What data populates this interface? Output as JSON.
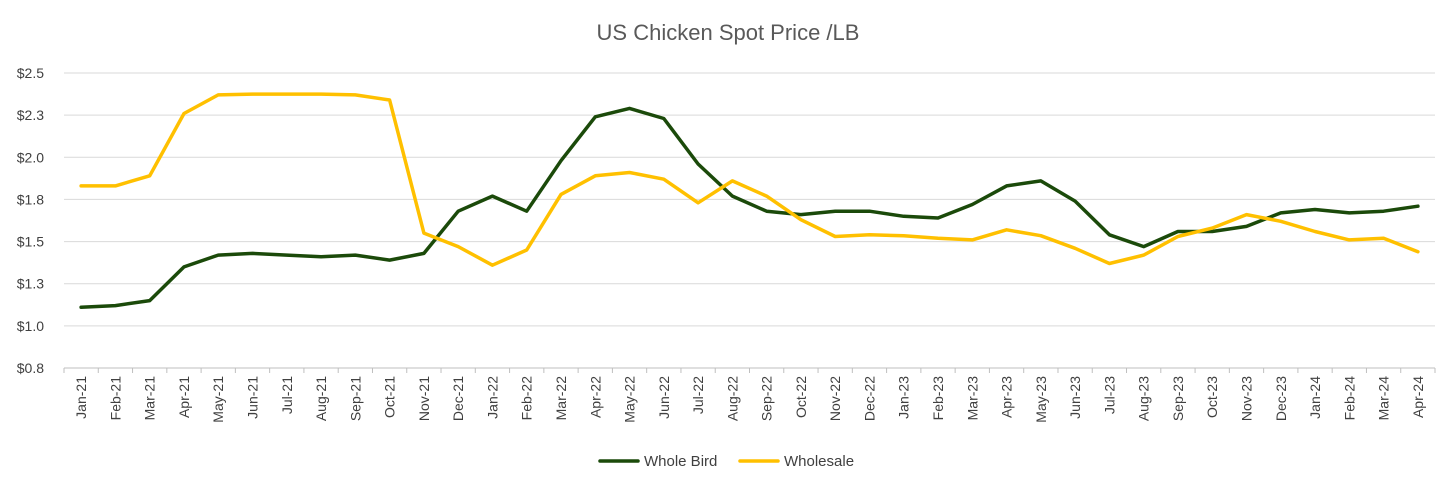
{
  "chart_data": {
    "type": "line",
    "title": "US Chicken Spot Price /LB",
    "xlabel": "",
    "ylabel": "",
    "ylim": [
      0.75,
      2.5
    ],
    "yticks": [
      0.75,
      1.0,
      1.25,
      1.5,
      1.75,
      2.0,
      2.25,
      2.5
    ],
    "ytick_labels": [
      "$0.8",
      "$1.0",
      "$1.3",
      "$1.5",
      "$1.8",
      "$2.0",
      "$2.3",
      "$2.5"
    ],
    "grid": true,
    "legend": "bottom",
    "categories": [
      "Jan-21",
      "Feb-21",
      "Mar-21",
      "Apr-21",
      "May-21",
      "Jun-21",
      "Jul-21",
      "Aug-21",
      "Sep-21",
      "Oct-21",
      "Nov-21",
      "Dec-21",
      "Jan-22",
      "Feb-22",
      "Mar-22",
      "Apr-22",
      "May-22",
      "Jun-22",
      "Jul-22",
      "Aug-22",
      "Sep-22",
      "Oct-22",
      "Nov-22",
      "Dec-22",
      "Jan-23",
      "Feb-23",
      "Mar-23",
      "Apr-23",
      "May-23",
      "Jun-23",
      "Jul-23",
      "Aug-23",
      "Sep-23",
      "Oct-23",
      "Nov-23",
      "Dec-23",
      "Jan-24",
      "Feb-24",
      "Mar-24",
      "Apr-24"
    ],
    "series": [
      {
        "name": "Whole Bird",
        "color": "#1b4a0a",
        "values": [
          1.11,
          1.12,
          1.15,
          1.35,
          1.42,
          1.43,
          1.42,
          1.41,
          1.42,
          1.39,
          1.43,
          1.68,
          1.77,
          1.68,
          1.98,
          2.24,
          2.29,
          2.23,
          1.96,
          1.77,
          1.68,
          1.66,
          1.68,
          1.68,
          1.65,
          1.64,
          1.72,
          1.83,
          1.86,
          1.74,
          1.54,
          1.47,
          1.56,
          1.56,
          1.59,
          1.67,
          1.69,
          1.67,
          1.68,
          1.71
        ]
      },
      {
        "name": "Wholesale",
        "color": "#ffc000",
        "values": [
          1.83,
          1.83,
          1.89,
          2.26,
          2.37,
          2.375,
          2.375,
          2.375,
          2.37,
          2.34,
          1.55,
          1.47,
          1.36,
          1.45,
          1.78,
          1.89,
          1.91,
          1.87,
          1.73,
          1.86,
          1.77,
          1.63,
          1.53,
          1.54,
          1.535,
          1.52,
          1.51,
          1.57,
          1.535,
          1.46,
          1.37,
          1.42,
          1.53,
          1.58,
          1.66,
          1.62,
          1.56,
          1.51,
          1.52,
          1.44
        ]
      }
    ]
  }
}
